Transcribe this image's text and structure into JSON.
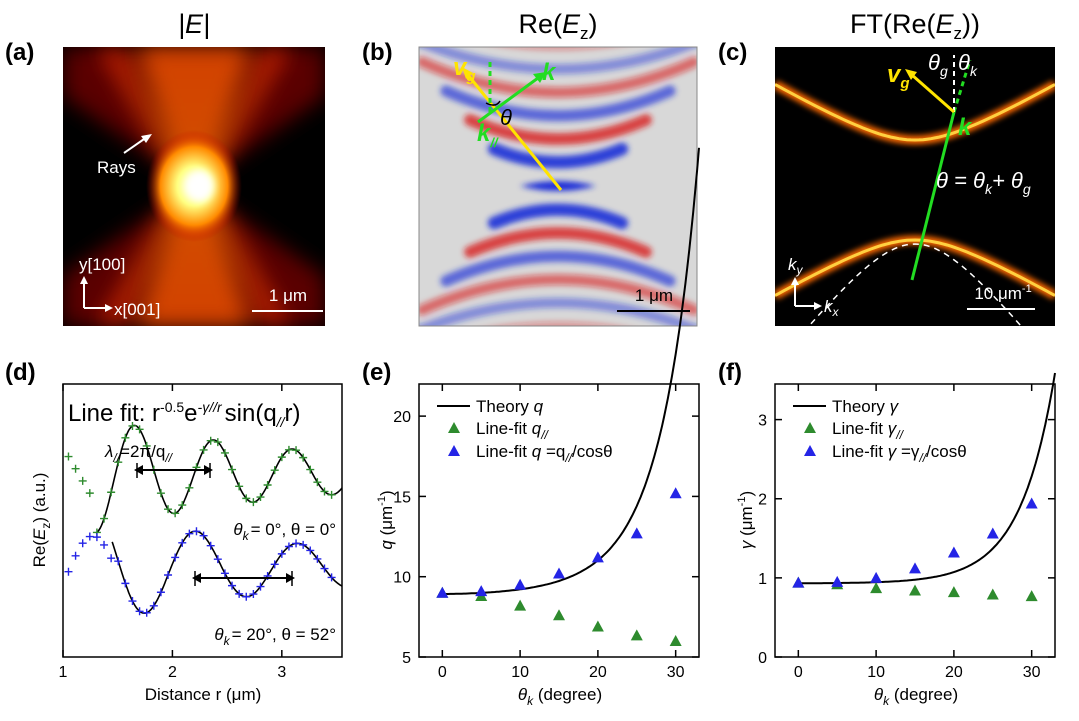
{
  "labels": {
    "a": "(a)",
    "b": "(b)",
    "c": "(c)",
    "d": "(d)",
    "e": "(e)",
    "f": "(f)"
  },
  "titles": {
    "a": "|E|",
    "b_pre": "Re(",
    "b_var": "E",
    "b_sub": "z",
    "b_post": ")",
    "c_pre": "FT(Re(",
    "c_var": "E",
    "c_sub": "z",
    "c_post": "))"
  },
  "panel_a": {
    "rays": "Rays",
    "axis_y": "y[100]",
    "axis_x": "x[001]",
    "scale": "1 μm"
  },
  "panel_b": {
    "vg": "v",
    "vg_sub": "g",
    "k": "k",
    "kpar": "k",
    "kpar_sub": "//",
    "theta": "θ",
    "scale": "1 μm"
  },
  "panel_c": {
    "vg": "v",
    "vg_sub": "g",
    "k": "k",
    "theta_g": "θ",
    "theta_g_sub": "g",
    "theta_k": "θ",
    "theta_k_sub": "k",
    "eq": "θ = θ",
    "eq_sub1": "k",
    "eq_plus": "+ θ",
    "eq_sub2": "g",
    "ky": "k",
    "ky_sub": "y",
    "kx": "k",
    "kx_sub": "x",
    "scale": "10 μm",
    "scale_sup": "-1"
  },
  "panel_d": {
    "fit_pre": "Line fit: r",
    "fit_exp1": "-0.5",
    "fit_e": "e",
    "fit_exp2": "-γ//r",
    "fit_sin": "sin(q",
    "fit_sub": "//",
    "fit_end": "r)",
    "lambda": "λ",
    "lambda_sub": "//",
    "lambda_eq": "=2π/q",
    "lambda_sub2": "//",
    "cond1": "θ",
    "cond1_sub": "k",
    "cond1_rest": "= 0°, θ = 0°",
    "cond2": "θ",
    "cond2_sub": "k",
    "cond2_rest": "= 20°, θ = 52°",
    "ylabel_pre": "Re(",
    "ylabel_var": "E",
    "ylabel_sub": "z",
    "ylabel_post": ") (a.u.)",
    "xlabel": "Distance r (μm)"
  },
  "panel_e": {
    "ylabel_var": "q",
    "ylabel_unit": " (μm",
    "ylabel_sup": "-1",
    "ylabel_end": ")",
    "xlabel_var": "θ",
    "xlabel_sub": "k",
    "xlabel_unit": " (degree)",
    "legend": {
      "theory": "Theory ",
      "theory_var": "q",
      "fit1": "Line-fit ",
      "fit1_var": "q",
      "fit1_sub": "//",
      "fit2": "Line-fit ",
      "fit2_var": "q",
      "fit2_eq": " =q",
      "fit2_sub": "//",
      "fit2_end": "/cosθ"
    }
  },
  "panel_f": {
    "ylabel_var": "γ",
    "ylabel_unit": " (μm",
    "ylabel_sup": "-1",
    "ylabel_end": ")",
    "xlabel_var": "θ",
    "xlabel_sub": "k",
    "xlabel_unit": " (degree)",
    "legend": {
      "theory": "Theory ",
      "theory_var": "γ",
      "fit1": "Line-fit ",
      "fit1_var": "γ",
      "fit1_sub": "//",
      "fit2": "Line-fit ",
      "fit2_var": "γ",
      "fit2_eq": " =γ",
      "fit2_sub": "//",
      "fit2_end": "/cosθ"
    }
  },
  "colors": {
    "green": "#2e8b2e",
    "blue": "#2424e6",
    "yellow": "#ffe400",
    "vgreen": "#22dd22"
  },
  "chart_data": [
    {
      "type": "line",
      "panel": "d",
      "xlim": [
        1,
        3.55
      ],
      "xticks": [
        1,
        2,
        3
      ],
      "series": [
        {
          "name": "θk = 0°, θ = 0°",
          "color": "green",
          "offset": 0.55
        },
        {
          "name": "θk = 20°, θ = 52°",
          "color": "blue",
          "offset": -0.55
        }
      ]
    },
    {
      "type": "scatter",
      "panel": "e",
      "xlim": [
        -3,
        33
      ],
      "ylim": [
        5,
        22
      ],
      "xticks": [
        0,
        10,
        20,
        30
      ],
      "yticks": [
        5,
        10,
        15,
        20
      ],
      "theory": {
        "formula": "9.02/cos^2.4",
        "x": [
          0,
          5,
          10,
          15,
          20,
          25,
          30,
          33
        ]
      },
      "x": [
        0,
        5,
        10,
        15,
        20,
        25,
        30
      ],
      "series": [
        {
          "name": "Line-fit q//",
          "marker": "triangle",
          "color": "green",
          "values": [
            9.0,
            8.8,
            8.2,
            7.6,
            6.9,
            6.35,
            6.0
          ]
        },
        {
          "name": "Line-fit q=q///cosθ",
          "marker": "triangle",
          "color": "blue",
          "values": [
            9.0,
            9.1,
            9.5,
            10.2,
            11.2,
            12.7,
            15.2
          ]
        }
      ]
    },
    {
      "type": "scatter",
      "panel": "f",
      "xlim": [
        -3,
        33
      ],
      "ylim": [
        0,
        3.45
      ],
      "xticks": [
        0,
        10,
        20,
        30
      ],
      "yticks": [
        0,
        1,
        2,
        3
      ],
      "theory": {
        "x": [
          0,
          5,
          10,
          15,
          20,
          25,
          30,
          33
        ]
      },
      "x": [
        0,
        5,
        10,
        15,
        20,
        25,
        30
      ],
      "series": [
        {
          "name": "Line-fit γ//",
          "marker": "triangle",
          "color": "green",
          "values": [
            0.94,
            0.92,
            0.87,
            0.84,
            0.82,
            0.79,
            0.77
          ]
        },
        {
          "name": "Line-fit γ=γ///cosθ",
          "marker": "triangle",
          "color": "blue",
          "values": [
            0.94,
            0.95,
            1.0,
            1.12,
            1.32,
            1.56,
            1.94
          ]
        }
      ]
    }
  ]
}
